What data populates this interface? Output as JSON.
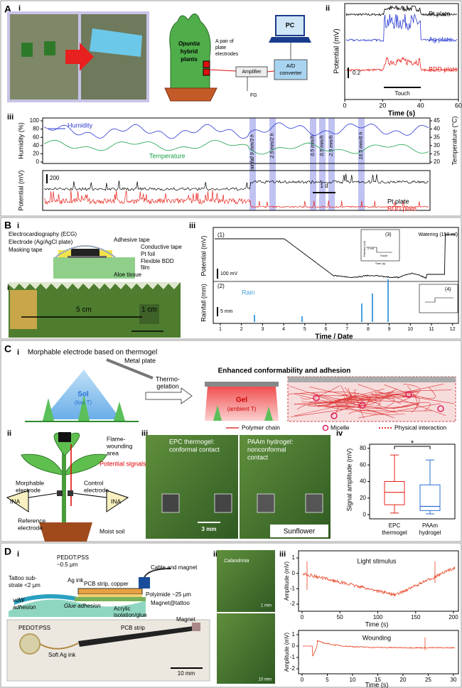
{
  "A": {
    "label": "A",
    "i": {
      "label": "i",
      "plant": [
        "Opuntia",
        "hybrid",
        "plants"
      ],
      "electrodes": [
        "A pair of",
        "plate",
        "electrodes"
      ],
      "pc": "PC",
      "amplifier": "Amplifier",
      "converter": [
        "A/D",
        "converter"
      ],
      "fg": "FG"
    },
    "ii": {
      "label": "ii",
      "traces": [
        "Pt plate",
        "Ag plate",
        "BDD plate"
      ],
      "scale": 0.2,
      "touch": "Touch",
      "ylabel": "Potential (mV)",
      "xlabel": "Time (s)",
      "xticks": [
        0,
        20,
        40,
        60
      ]
    },
    "iii": {
      "label": "iii",
      "humidity": "Humidity",
      "temperature": "Temperature",
      "ylabel": "Humidity (%)",
      "y2label": "Temperature (°C)",
      "yticks": [
        0,
        20,
        40,
        60,
        80,
        100
      ],
      "y2ticks": [
        20,
        25,
        30,
        35,
        40,
        45
      ],
      "rain": [
        "rainfall 9 mm/3 h",
        "2.5 mm/2 h",
        "0.5 mm/h",
        "0.5 mm/h",
        "2.5 mm/h",
        "16.5 mm/6 h"
      ],
      "ylabel2": "Potential (mV)",
      "scale": 200,
      "duration": "1 d",
      "traces": [
        "Pt plate",
        "BDD plate"
      ]
    }
  },
  "B": {
    "label": "B",
    "i": {
      "label": "i",
      "labels": [
        "Electrocardiography (ECG)",
        "Electrode (Ag/AgCl plate)",
        "Masking tape",
        "Adhesive tape",
        "Conductive tape",
        "Pt foil",
        "Flexible BDD",
        "film",
        "Aloe tissue"
      ]
    },
    "ii": {
      "label": "ii",
      "lengths": [
        "5 cm",
        "1 cm"
      ]
    },
    "iii": {
      "label": "iii",
      "panels": [
        "(1)",
        "(2)",
        "(3)",
        "(4)"
      ],
      "watering": "Watering (150 ml)",
      "ylabel": "Potential (mV)",
      "scale": "100 mV",
      "ylabel2": "Rainfall (mm)",
      "scale2": "5 mm",
      "rain": "Rain",
      "xlabel": "Time / Date",
      "xticks": [
        1,
        2,
        3,
        4,
        5,
        6,
        7,
        8,
        9,
        10,
        11,
        12
      ],
      "inset": {
        "ylabel": "Potential (mV)",
        "scale": "2 mV",
        "touch": "Touch",
        "xlabel": "Time (s)"
      }
    }
  },
  "C": {
    "label": "C",
    "i": {
      "label": "i",
      "title": "Morphable electrode based on thermogel",
      "plate": "Metal plate",
      "sol": [
        "Sol",
        "(low T)"
      ],
      "process": [
        "Thermo-",
        "gelation"
      ],
      "result": "Enhanced conformability and adhesion",
      "gel": [
        "Gel",
        "(ambient T)"
      ],
      "legend": [
        "Polymer chain",
        "Micelle",
        "Physical interaction"
      ]
    },
    "ii": {
      "label": "ii",
      "texts": [
        "Flame-",
        "wounding",
        "area",
        "Potential signals",
        "Morphable",
        "electrode",
        "Control",
        "electrode",
        "INA",
        "INA",
        "Reference",
        "electrode",
        "Moist soil"
      ]
    },
    "iii": {
      "label": "iii",
      "left": [
        "EPC thermogel:",
        "conformal contact"
      ],
      "right": [
        "PAAm hydrogel:",
        "nonconformal",
        "contact"
      ],
      "scale": "3 mm",
      "species": "Sunflower"
    },
    "iv": {
      "label": "iv",
      "ylabel": "Signal amplitude (mV)",
      "ylim": [
        -5,
        85
      ],
      "yticks": [
        0,
        20,
        40,
        60,
        80
      ],
      "significance": "*",
      "groups": [
        [
          "EPC",
          "thermogel"
        ],
        [
          "PAAm",
          "hydrogel"
        ]
      ],
      "colors": [
        "#e8231c",
        "#2a6fd1"
      ],
      "boxes": [
        {
          "min": 2,
          "q1": 12,
          "median": 27,
          "q3": 40,
          "max": 72
        },
        {
          "min": 1,
          "q1": 5,
          "median": 10,
          "q3": 36,
          "max": 66
        }
      ]
    }
  },
  "D": {
    "label": "D",
    "i": {
      "label": "i",
      "layers": [
        "PEDOT:PSS",
        "~0.5 μm",
        "Tattoo sub-",
        "strate <2 μm",
        "Ag ink",
        "Cable and magnet",
        "PCB strip, copper",
        "Polyimide ~25 μm",
        "Magnet@tattoo",
        "Acrylic",
        "isolation/glue",
        "vdW",
        "adhesion",
        "Glue adhesion"
      ],
      "photo": [
        "PEDOT:PSS",
        "Soft Ag ink",
        "PCB strip",
        "Magnet",
        "10 mm"
      ]
    },
    "ii": {
      "label": "ii",
      "species": "Calandrinia",
      "scales": [
        "1 mm",
        "10 mm"
      ]
    },
    "iii": {
      "label": "iii",
      "ylabel": "Amplitude (mV)",
      "xlabel": "Time (s)",
      "top": {
        "title": "Light stimulus",
        "xticks": [
          0,
          50,
          100,
          150,
          200
        ],
        "yticks": [
          1,
          0,
          -1,
          -2
        ]
      },
      "bottom": {
        "title": "Wounding",
        "xticks": [
          0,
          5,
          10,
          15,
          20,
          25,
          30
        ],
        "yticks": [
          1,
          0,
          -1,
          -2
        ]
      }
    }
  }
}
